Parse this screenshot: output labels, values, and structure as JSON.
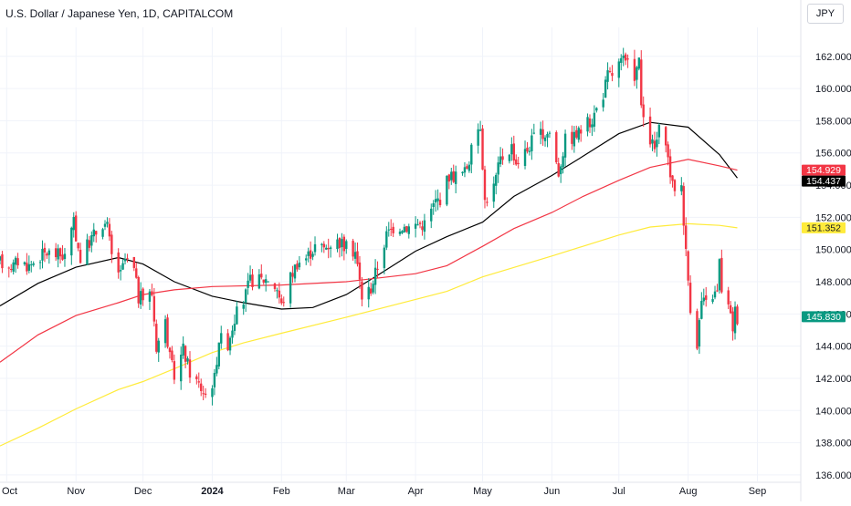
{
  "header": {
    "title": "U.S. Dollar / Japanese Yen, 1D, CAPITALCOM",
    "currency_button": "JPY"
  },
  "colors": {
    "up": "#089981",
    "down": "#f23645",
    "ma_black": "#000000",
    "ma_red": "#f23645",
    "ma_yellow": "#ffeb3b",
    "badge_yellow": "#ffeb3b",
    "last_price_badge": "#089981",
    "grid": "#f0f3fa"
  },
  "chart_data": {
    "type": "candlestick",
    "title": "U.S. Dollar / Japanese Yen, 1D, CAPITALCOM",
    "y_axis": {
      "ticks": [
        "136.000",
        "138.000",
        "140.000",
        "142.000",
        "144.000",
        "146.000",
        "148.000",
        "150.000",
        "152.000",
        "154.000",
        "156.000",
        "158.000",
        "160.000",
        "162.000"
      ],
      "range": [
        135.6,
        163.8
      ]
    },
    "x_axis": {
      "ticks": [
        {
          "label": "Oct",
          "date": "2023-10-01",
          "bold": false
        },
        {
          "label": "Nov",
          "date": "2023-11-01",
          "bold": false
        },
        {
          "label": "Dec",
          "date": "2023-12-01",
          "bold": false
        },
        {
          "label": "2024",
          "date": "2024-01-01",
          "bold": true
        },
        {
          "label": "Feb",
          "date": "2024-02-01",
          "bold": false
        },
        {
          "label": "Mar",
          "date": "2024-03-01",
          "bold": false
        },
        {
          "label": "Apr",
          "date": "2024-04-01",
          "bold": false
        },
        {
          "label": "May",
          "date": "2024-05-01",
          "bold": false
        },
        {
          "label": "Jun",
          "date": "2024-06-01",
          "bold": false
        },
        {
          "label": "Jul",
          "date": "2024-07-01",
          "bold": false
        },
        {
          "label": "Aug",
          "date": "2024-08-01",
          "bold": false
        },
        {
          "label": "Sep",
          "date": "2024-09-01",
          "bold": false
        }
      ],
      "range": [
        "2023-09-28",
        "2024-09-20"
      ]
    },
    "price_path": [
      [
        "2023-09-28",
        149.2
      ],
      [
        "2023-10-04",
        149.0
      ],
      [
        "2023-10-06",
        149.3
      ],
      [
        "2023-10-11",
        149.0
      ],
      [
        "2023-10-16",
        149.6
      ],
      [
        "2023-10-19",
        149.8
      ],
      [
        "2023-10-23",
        149.7
      ],
      [
        "2023-10-27",
        149.6
      ],
      [
        "2023-10-31",
        151.6
      ],
      [
        "2023-11-03",
        149.4
      ],
      [
        "2023-11-07",
        150.5
      ],
      [
        "2023-11-13",
        151.7
      ],
      [
        "2023-11-15",
        151.4
      ],
      [
        "2023-11-17",
        149.6
      ],
      [
        "2023-11-21",
        148.4
      ],
      [
        "2023-11-23",
        149.4
      ],
      [
        "2023-11-27",
        148.7
      ],
      [
        "2023-11-29",
        147.0
      ],
      [
        "2023-12-01",
        147.0
      ],
      [
        "2023-12-05",
        147.3
      ],
      [
        "2023-12-07",
        144.0
      ],
      [
        "2023-12-11",
        145.5
      ],
      [
        "2023-12-13",
        143.2
      ],
      [
        "2023-12-15",
        142.2
      ],
      [
        "2023-12-19",
        143.8
      ],
      [
        "2023-12-22",
        142.4
      ],
      [
        "2023-12-27",
        141.4
      ],
      [
        "2023-12-29",
        141.0
      ],
      [
        "2024-01-02",
        142.0
      ],
      [
        "2024-01-04",
        144.5
      ],
      [
        "2024-01-08",
        144.2
      ],
      [
        "2024-01-11",
        145.8
      ],
      [
        "2024-01-15",
        146.8
      ],
      [
        "2024-01-18",
        148.1
      ],
      [
        "2024-01-22",
        148.1
      ],
      [
        "2024-01-26",
        148.2
      ],
      [
        "2024-01-30",
        147.6
      ],
      [
        "2024-02-01",
        146.5
      ],
      [
        "2024-02-05",
        148.3
      ],
      [
        "2024-02-08",
        149.2
      ],
      [
        "2024-02-12",
        149.5
      ],
      [
        "2024-02-16",
        150.2
      ],
      [
        "2024-02-20",
        150.1
      ],
      [
        "2024-02-23",
        150.4
      ],
      [
        "2024-02-27",
        150.5
      ],
      [
        "2024-03-01",
        150.1
      ],
      [
        "2024-03-05",
        149.9
      ],
      [
        "2024-03-08",
        147.1
      ],
      [
        "2024-03-12",
        147.6
      ],
      [
        "2024-03-15",
        149.0
      ],
      [
        "2024-03-19",
        150.9
      ],
      [
        "2024-03-22",
        151.4
      ],
      [
        "2024-03-26",
        151.5
      ],
      [
        "2024-03-29",
        151.4
      ],
      [
        "2024-04-02",
        151.6
      ],
      [
        "2024-04-05",
        151.6
      ],
      [
        "2024-04-10",
        153.0
      ],
      [
        "2024-04-12",
        153.2
      ],
      [
        "2024-04-16",
        154.6
      ],
      [
        "2024-04-19",
        154.6
      ],
      [
        "2024-04-23",
        154.8
      ],
      [
        "2024-04-25",
        155.6
      ],
      [
        "2024-04-29",
        157.6
      ],
      [
        "2024-04-30",
        157.8
      ],
      [
        "2024-05-02",
        153.0
      ],
      [
        "2024-05-06",
        153.9
      ],
      [
        "2024-05-09",
        155.6
      ],
      [
        "2024-05-14",
        156.4
      ],
      [
        "2024-05-16",
        155.4
      ],
      [
        "2024-05-21",
        156.2
      ],
      [
        "2024-05-24",
        157.0
      ],
      [
        "2024-05-28",
        157.1
      ],
      [
        "2024-05-31",
        157.3
      ],
      [
        "2024-06-04",
        154.8
      ],
      [
        "2024-06-07",
        156.8
      ],
      [
        "2024-06-11",
        157.0
      ],
      [
        "2024-06-14",
        157.4
      ],
      [
        "2024-06-19",
        158.1
      ],
      [
        "2024-06-24",
        159.7
      ],
      [
        "2024-06-26",
        160.8
      ],
      [
        "2024-06-28",
        160.9
      ],
      [
        "2024-07-01",
        161.5
      ],
      [
        "2024-07-03",
        161.7
      ],
      [
        "2024-07-08",
        160.9
      ],
      [
        "2024-07-10",
        161.6
      ],
      [
        "2024-07-11",
        159.0
      ],
      [
        "2024-07-12",
        157.8
      ],
      [
        "2024-07-17",
        156.2
      ],
      [
        "2024-07-19",
        157.4
      ],
      [
        "2024-07-23",
        155.6
      ],
      [
        "2024-07-25",
        153.9
      ],
      [
        "2024-07-29",
        154.0
      ],
      [
        "2024-07-31",
        149.8
      ],
      [
        "2024-08-02",
        146.5
      ],
      [
        "2024-08-05",
        144.2
      ],
      [
        "2024-08-07",
        146.8
      ],
      [
        "2024-08-09",
        146.6
      ],
      [
        "2024-08-12",
        147.2
      ],
      [
        "2024-08-14",
        147.3
      ],
      [
        "2024-08-15",
        149.2
      ],
      [
        "2024-08-16",
        147.6
      ],
      [
        "2024-08-19",
        146.4
      ],
      [
        "2024-08-21",
        145.2
      ],
      [
        "2024-08-22",
        146.2
      ],
      [
        "2024-08-23",
        145.8
      ]
    ],
    "moving_averages": [
      {
        "color": "#000000",
        "points": [
          [
            "2023-09-28",
            146.5
          ],
          [
            "2023-10-15",
            147.9
          ],
          [
            "2023-11-01",
            148.9
          ],
          [
            "2023-11-20",
            149.5
          ],
          [
            "2023-12-01",
            149.1
          ],
          [
            "2023-12-15",
            148.0
          ],
          [
            "2024-01-01",
            147.1
          ],
          [
            "2024-01-15",
            146.7
          ],
          [
            "2024-02-01",
            146.3
          ],
          [
            "2024-02-15",
            146.4
          ],
          [
            "2024-03-01",
            147.2
          ],
          [
            "2024-03-15",
            148.4
          ],
          [
            "2024-04-01",
            149.9
          ],
          [
            "2024-04-15",
            150.8
          ],
          [
            "2024-05-01",
            151.7
          ],
          [
            "2024-05-15",
            153.3
          ],
          [
            "2024-06-01",
            154.6
          ],
          [
            "2024-06-15",
            155.8
          ],
          [
            "2024-07-01",
            157.2
          ],
          [
            "2024-07-15",
            157.9
          ],
          [
            "2024-08-01",
            157.6
          ],
          [
            "2024-08-15",
            155.9
          ],
          [
            "2024-08-23",
            154.44
          ]
        ]
      },
      {
        "color": "#f23645",
        "points": [
          [
            "2023-09-28",
            143.0
          ],
          [
            "2023-10-15",
            144.7
          ],
          [
            "2023-11-01",
            145.9
          ],
          [
            "2023-11-20",
            146.7
          ],
          [
            "2023-12-01",
            147.2
          ],
          [
            "2023-12-15",
            147.5
          ],
          [
            "2024-01-01",
            147.7
          ],
          [
            "2024-02-01",
            147.8
          ],
          [
            "2024-03-01",
            148.0
          ],
          [
            "2024-04-01",
            148.5
          ],
          [
            "2024-04-15",
            149.0
          ],
          [
            "2024-05-01",
            150.2
          ],
          [
            "2024-05-15",
            151.3
          ],
          [
            "2024-06-01",
            152.3
          ],
          [
            "2024-06-15",
            153.3
          ],
          [
            "2024-07-01",
            154.3
          ],
          [
            "2024-07-15",
            155.1
          ],
          [
            "2024-08-01",
            155.6
          ],
          [
            "2024-08-15",
            155.2
          ],
          [
            "2024-08-23",
            154.93
          ]
        ]
      },
      {
        "color": "#ffeb3b",
        "points": [
          [
            "2023-09-28",
            137.8
          ],
          [
            "2023-10-15",
            138.9
          ],
          [
            "2023-11-01",
            140.1
          ],
          [
            "2023-11-20",
            141.3
          ],
          [
            "2023-12-01",
            141.8
          ],
          [
            "2023-12-15",
            142.6
          ],
          [
            "2024-01-01",
            143.6
          ],
          [
            "2024-01-15",
            144.2
          ],
          [
            "2024-02-01",
            144.8
          ],
          [
            "2024-03-01",
            145.8
          ],
          [
            "2024-04-01",
            146.9
          ],
          [
            "2024-04-15",
            147.4
          ],
          [
            "2024-05-01",
            148.3
          ],
          [
            "2024-06-01",
            149.6
          ],
          [
            "2024-07-01",
            150.9
          ],
          [
            "2024-07-15",
            151.4
          ],
          [
            "2024-08-01",
            151.6
          ],
          [
            "2024-08-15",
            151.5
          ],
          [
            "2024-08-23",
            151.35
          ]
        ]
      }
    ],
    "price_badges": [
      {
        "label": "154.929",
        "value": 154.929,
        "color": "#f23645",
        "text_color": "#ffffff"
      },
      {
        "label": "154.437",
        "value": 154.437,
        "color": "#000000",
        "text_color": "#ffffff"
      },
      {
        "label": "151.352",
        "value": 151.352,
        "color": "#ffeb3b",
        "text_color": "#131722"
      },
      {
        "label": "145.830",
        "value": 145.83,
        "color": "#089981",
        "text_color": "#ffffff"
      }
    ]
  }
}
